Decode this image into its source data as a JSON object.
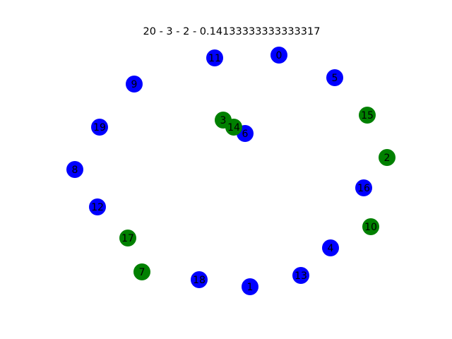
{
  "figure": {
    "title": "20 - 3 - 2 - 0.14133333333333317",
    "colors": {
      "blue": "#0000ff",
      "green": "#008000",
      "background": "#ffffff"
    }
  },
  "graph": {
    "nodes": [
      {
        "id": "0",
        "color": "blue"
      },
      {
        "id": "5",
        "color": "blue"
      },
      {
        "id": "15",
        "color": "green"
      },
      {
        "id": "2",
        "color": "green"
      },
      {
        "id": "16",
        "color": "blue"
      },
      {
        "id": "10",
        "color": "green"
      },
      {
        "id": "4",
        "color": "blue"
      },
      {
        "id": "13",
        "color": "blue"
      },
      {
        "id": "1",
        "color": "blue"
      },
      {
        "id": "18",
        "color": "blue"
      },
      {
        "id": "7",
        "color": "green"
      },
      {
        "id": "17",
        "color": "green"
      },
      {
        "id": "12",
        "color": "blue"
      },
      {
        "id": "8",
        "color": "blue"
      },
      {
        "id": "19",
        "color": "blue"
      },
      {
        "id": "9",
        "color": "blue"
      },
      {
        "id": "11",
        "color": "blue"
      },
      {
        "id": "6",
        "color": "blue"
      },
      {
        "id": "3",
        "color": "green"
      },
      {
        "id": "14",
        "color": "green"
      }
    ],
    "edges": []
  }
}
